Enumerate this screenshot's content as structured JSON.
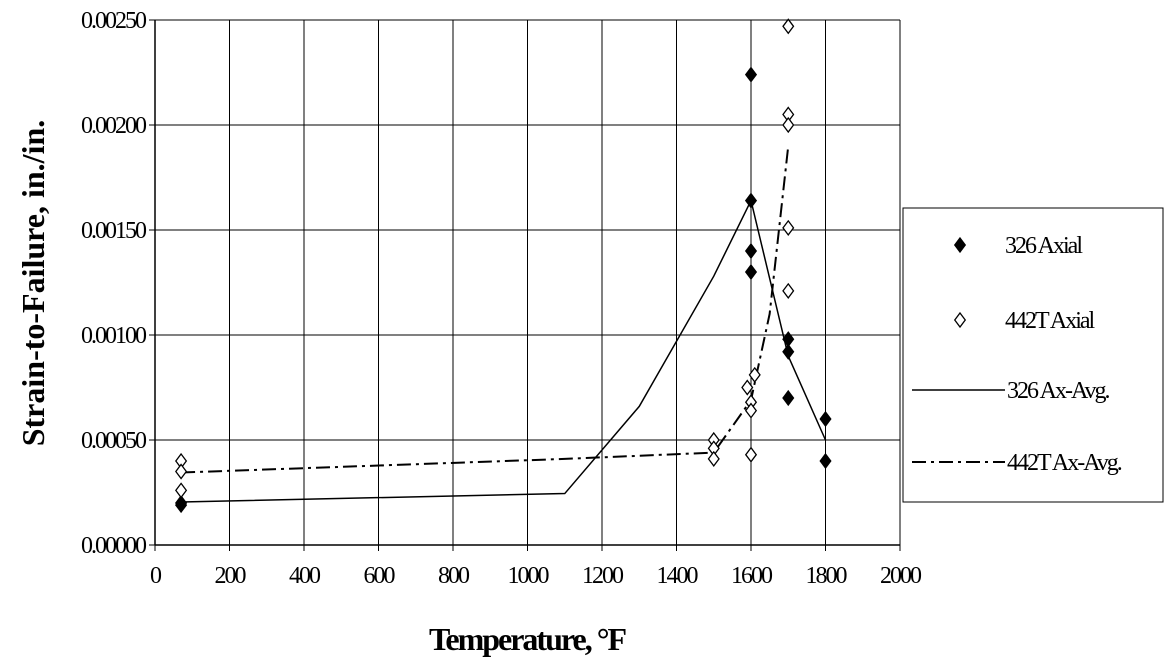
{
  "chart_data": {
    "type": "scatter",
    "title": "",
    "xlabel": "Temperature, °F",
    "ylabel": "Strain-to-Failure, in./in.",
    "xlim": [
      0,
      2000
    ],
    "ylim": [
      0,
      0.0025
    ],
    "x_ticks": [
      "0",
      "200",
      "400",
      "600",
      "800",
      "1000",
      "1200",
      "1400",
      "1600",
      "1800",
      "2000"
    ],
    "y_ticks": [
      "0.00000",
      "0.00050",
      "0.00100",
      "0.00150",
      "0.00200",
      "0.00250"
    ],
    "grid": true,
    "legend_position": "right",
    "series": [
      {
        "name": "326 Axial",
        "kind": "points",
        "marker": "filled-diamond",
        "points": [
          [
            70,
            0.00019
          ],
          [
            70,
            0.0002
          ],
          [
            1600,
            0.00224
          ],
          [
            1600,
            0.00164
          ],
          [
            1600,
            0.0014
          ],
          [
            1600,
            0.0013
          ],
          [
            1700,
            0.00098
          ],
          [
            1700,
            0.00092
          ],
          [
            1700,
            0.0007
          ],
          [
            1800,
            0.0006
          ],
          [
            1800,
            0.0004
          ]
        ]
      },
      {
        "name": "442T Axial",
        "kind": "points",
        "marker": "open-diamond",
        "points": [
          [
            70,
            0.0004
          ],
          [
            70,
            0.00035
          ],
          [
            70,
            0.00026
          ],
          [
            1500,
            0.0005
          ],
          [
            1500,
            0.00046
          ],
          [
            1500,
            0.00041
          ],
          [
            1590,
            0.00075
          ],
          [
            1600,
            0.00068
          ],
          [
            1600,
            0.00064
          ],
          [
            1600,
            0.00043
          ],
          [
            1610,
            0.00081
          ],
          [
            1700,
            0.00247
          ],
          [
            1700,
            0.00205
          ],
          [
            1700,
            0.002
          ],
          [
            1700,
            0.00151
          ],
          [
            1700,
            0.00121
          ]
        ]
      },
      {
        "name": "326 Ax-Avg.",
        "kind": "line",
        "dash": "solid",
        "points": [
          [
            70,
            0.000205
          ],
          [
            1100,
            0.000245
          ],
          [
            1300,
            0.00066
          ],
          [
            1500,
            0.00128
          ],
          [
            1600,
            0.00164
          ],
          [
            1700,
            0.0009
          ],
          [
            1800,
            0.0005
          ]
        ]
      },
      {
        "name": "442T Ax-Avg.",
        "kind": "line",
        "dash": "dash-dot",
        "points": [
          [
            70,
            0.000345
          ],
          [
            1100,
            0.00041
          ],
          [
            1500,
            0.00044
          ],
          [
            1600,
            0.00069
          ],
          [
            1650,
            0.0011
          ],
          [
            1700,
            0.0019
          ]
        ]
      }
    ]
  }
}
